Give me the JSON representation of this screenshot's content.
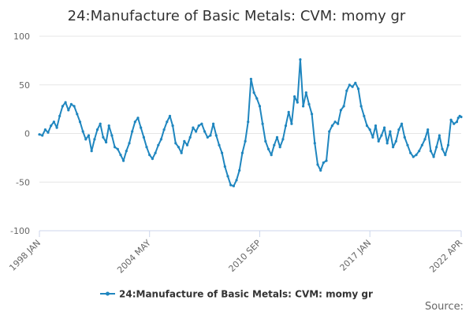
{
  "chart_data": {
    "type": "line",
    "title": "24:Manufacture of Basic Metals: CVM: momy gr",
    "xlabel": "",
    "ylabel": "",
    "ylim": [
      -100,
      100
    ],
    "yticks": [
      "100",
      "50",
      "0",
      "-50",
      "-100"
    ],
    "x_range": [
      "1998-01",
      "2022-04"
    ],
    "xticks": [
      "1998 JAN",
      "2004 MAY",
      "2010 SEP",
      "2017 JAN",
      "2022 APR"
    ],
    "grid": true,
    "legend_position": "bottom-center",
    "series": [
      {
        "name": "24:Manufacture of Basic Metals: CVM: momy gr",
        "color": "#1f86bf",
        "points": [
          [
            "1998-01",
            -1
          ],
          [
            "1998-03",
            -2
          ],
          [
            "1998-05",
            4
          ],
          [
            "1998-07",
            1
          ],
          [
            "1998-09",
            8
          ],
          [
            "1998-11",
            12
          ],
          [
            "1999-01",
            6
          ],
          [
            "1999-03",
            18
          ],
          [
            "1999-05",
            28
          ],
          [
            "1999-07",
            32
          ],
          [
            "1999-09",
            24
          ],
          [
            "1999-11",
            30
          ],
          [
            "2000-01",
            28
          ],
          [
            "2000-03",
            20
          ],
          [
            "2000-05",
            12
          ],
          [
            "2000-07",
            2
          ],
          [
            "2000-09",
            -6
          ],
          [
            "2000-11",
            -2
          ],
          [
            "2001-01",
            -18
          ],
          [
            "2001-03",
            -6
          ],
          [
            "2001-05",
            4
          ],
          [
            "2001-07",
            10
          ],
          [
            "2001-09",
            -4
          ],
          [
            "2001-11",
            -9
          ],
          [
            "2002-01",
            8
          ],
          [
            "2002-03",
            -2
          ],
          [
            "2002-05",
            -14
          ],
          [
            "2002-07",
            -16
          ],
          [
            "2002-09",
            -22
          ],
          [
            "2002-11",
            -28
          ],
          [
            "2003-01",
            -18
          ],
          [
            "2003-03",
            -10
          ],
          [
            "2003-05",
            2
          ],
          [
            "2003-07",
            12
          ],
          [
            "2003-09",
            16
          ],
          [
            "2003-11",
            6
          ],
          [
            "2004-01",
            -4
          ],
          [
            "2004-03",
            -14
          ],
          [
            "2004-05",
            -22
          ],
          [
            "2004-07",
            -26
          ],
          [
            "2004-09",
            -20
          ],
          [
            "2004-11",
            -12
          ],
          [
            "2005-01",
            -6
          ],
          [
            "2005-03",
            4
          ],
          [
            "2005-05",
            12
          ],
          [
            "2005-07",
            18
          ],
          [
            "2005-09",
            8
          ],
          [
            "2005-11",
            -10
          ],
          [
            "2006-01",
            -14
          ],
          [
            "2006-03",
            -20
          ],
          [
            "2006-05",
            -8
          ],
          [
            "2006-07",
            -12
          ],
          [
            "2006-09",
            -4
          ],
          [
            "2006-11",
            6
          ],
          [
            "2007-01",
            2
          ],
          [
            "2007-03",
            8
          ],
          [
            "2007-05",
            10
          ],
          [
            "2007-07",
            2
          ],
          [
            "2007-09",
            -4
          ],
          [
            "2007-11",
            -2
          ],
          [
            "2008-01",
            10
          ],
          [
            "2008-03",
            -2
          ],
          [
            "2008-05",
            -12
          ],
          [
            "2008-07",
            -20
          ],
          [
            "2008-09",
            -34
          ],
          [
            "2008-11",
            -44
          ],
          [
            "2009-01",
            -53
          ],
          [
            "2009-03",
            -54
          ],
          [
            "2009-05",
            -48
          ],
          [
            "2009-07",
            -38
          ],
          [
            "2009-09",
            -20
          ],
          [
            "2009-11",
            -8
          ],
          [
            "2010-01",
            12
          ],
          [
            "2010-03",
            56
          ],
          [
            "2010-05",
            42
          ],
          [
            "2010-07",
            36
          ],
          [
            "2010-09",
            28
          ],
          [
            "2010-11",
            10
          ],
          [
            "2011-01",
            -8
          ],
          [
            "2011-03",
            -16
          ],
          [
            "2011-05",
            -22
          ],
          [
            "2011-07",
            -12
          ],
          [
            "2011-09",
            -4
          ],
          [
            "2011-11",
            -14
          ],
          [
            "2012-01",
            -6
          ],
          [
            "2012-03",
            8
          ],
          [
            "2012-05",
            22
          ],
          [
            "2012-07",
            10
          ],
          [
            "2012-09",
            38
          ],
          [
            "2012-11",
            32
          ],
          [
            "2013-01",
            76
          ],
          [
            "2013-03",
            28
          ],
          [
            "2013-05",
            42
          ],
          [
            "2013-07",
            30
          ],
          [
            "2013-09",
            20
          ],
          [
            "2013-11",
            -10
          ],
          [
            "2014-01",
            -32
          ],
          [
            "2014-03",
            -38
          ],
          [
            "2014-05",
            -30
          ],
          [
            "2014-07",
            -28
          ],
          [
            "2014-09",
            2
          ],
          [
            "2014-11",
            8
          ],
          [
            "2015-01",
            12
          ],
          [
            "2015-03",
            10
          ],
          [
            "2015-05",
            24
          ],
          [
            "2015-07",
            28
          ],
          [
            "2015-09",
            44
          ],
          [
            "2015-11",
            50
          ],
          [
            "2016-01",
            48
          ],
          [
            "2016-03",
            52
          ],
          [
            "2016-05",
            46
          ],
          [
            "2016-07",
            28
          ],
          [
            "2016-09",
            18
          ],
          [
            "2016-11",
            8
          ],
          [
            "2017-01",
            4
          ],
          [
            "2017-03",
            -4
          ],
          [
            "2017-05",
            8
          ],
          [
            "2017-07",
            -8
          ],
          [
            "2017-09",
            -2
          ],
          [
            "2017-11",
            6
          ],
          [
            "2018-01",
            -10
          ],
          [
            "2018-03",
            2
          ],
          [
            "2018-05",
            -14
          ],
          [
            "2018-07",
            -8
          ],
          [
            "2018-09",
            4
          ],
          [
            "2018-11",
            10
          ],
          [
            "2019-01",
            -4
          ],
          [
            "2019-03",
            -12
          ],
          [
            "2019-05",
            -20
          ],
          [
            "2019-07",
            -24
          ],
          [
            "2019-09",
            -22
          ],
          [
            "2019-11",
            -18
          ],
          [
            "2020-01",
            -12
          ],
          [
            "2020-03",
            -6
          ],
          [
            "2020-05",
            4
          ],
          [
            "2020-07",
            -18
          ],
          [
            "2020-09",
            -24
          ],
          [
            "2020-11",
            -14
          ],
          [
            "2021-01",
            -2
          ],
          [
            "2021-03",
            -16
          ],
          [
            "2021-05",
            -22
          ],
          [
            "2021-07",
            -12
          ],
          [
            "2021-09",
            14
          ],
          [
            "2021-11",
            10
          ],
          [
            "2022-01",
            12
          ],
          [
            "2022-02",
            16
          ],
          [
            "2022-03",
            18
          ],
          [
            "2022-04",
            17
          ]
        ]
      }
    ],
    "credit": "Source:"
  }
}
